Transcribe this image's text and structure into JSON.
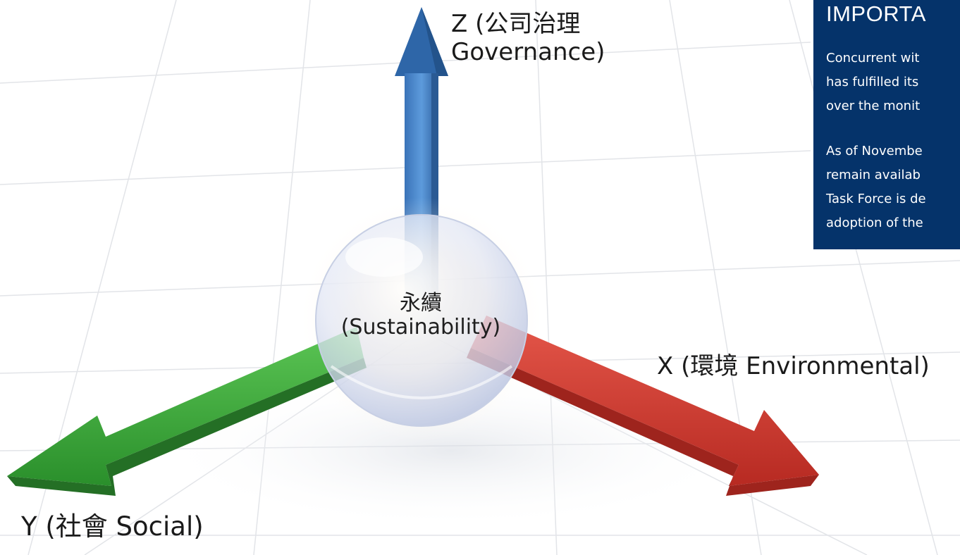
{
  "diagram": {
    "z_axis": {
      "label_line1": "Z (公司治理",
      "label_line2": "Governance)",
      "color": "#3f7fc6"
    },
    "x_axis": {
      "label": "X (環境 Environmental)",
      "color": "#d63a2f"
    },
    "y_axis": {
      "label": "Y (社會 Social)",
      "color": "#3cab3a"
    },
    "center": {
      "label_line1": "永續",
      "label_line2": "(Sustainability)"
    }
  },
  "notice": {
    "heading": "IMPORTA",
    "paragraph1": [
      "Concurrent wit",
      "has fulfilled its",
      "over the monit"
    ],
    "paragraph2": [
      "As of Novembe",
      "remain availab",
      "Task Force is de",
      "adoption of the"
    ],
    "background": "#05336a"
  }
}
